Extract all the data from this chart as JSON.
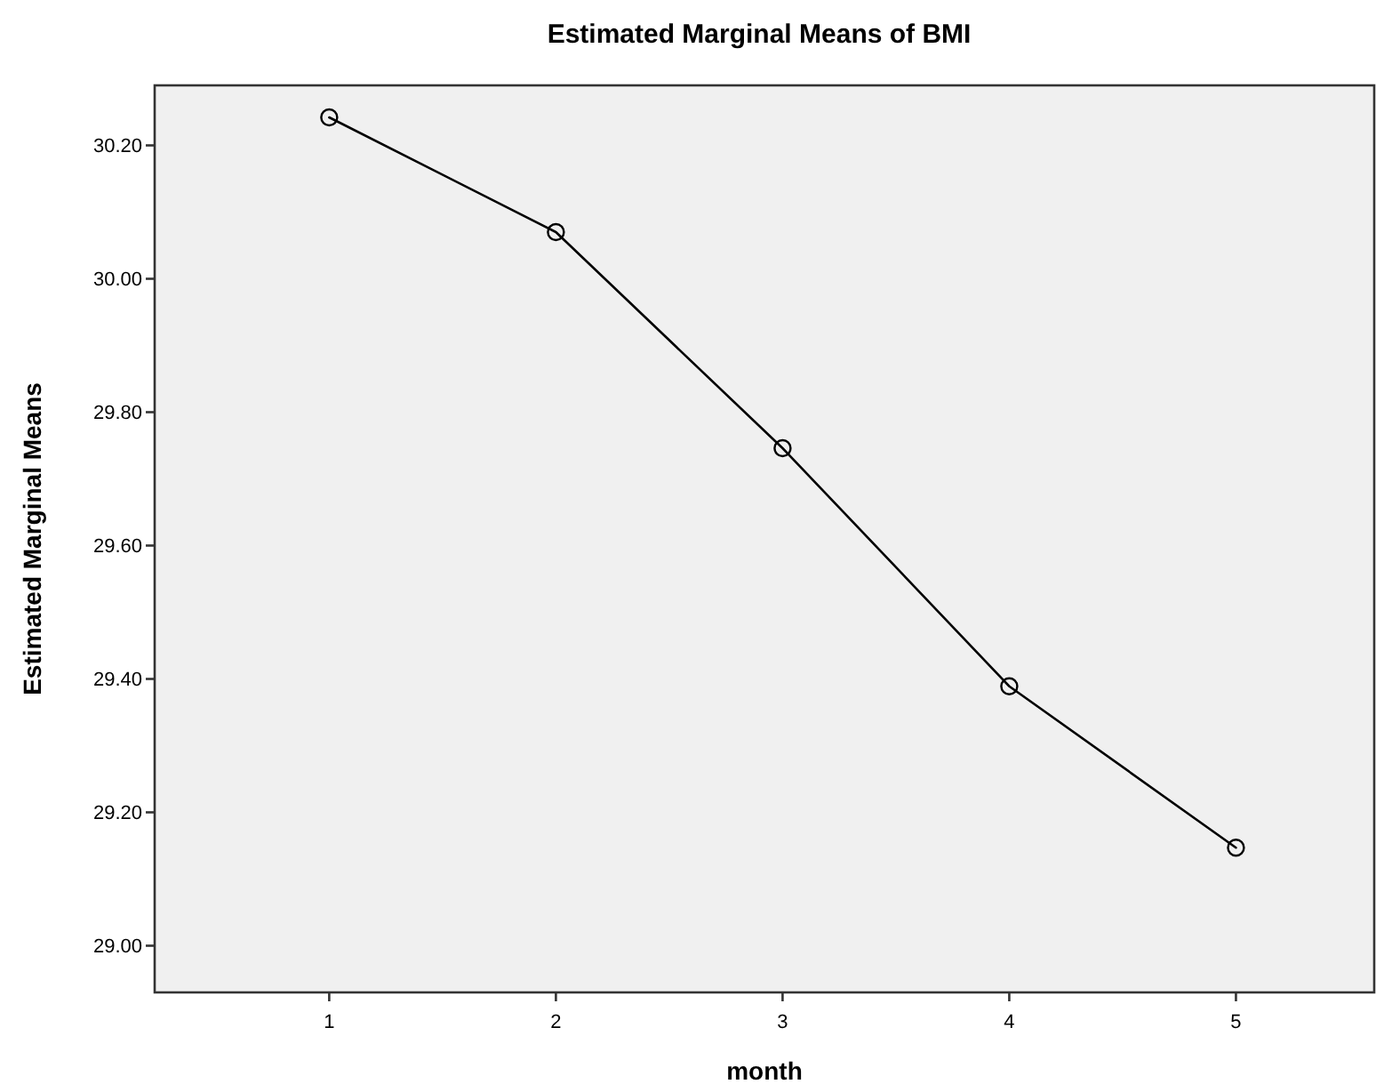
{
  "chart_data": {
    "type": "line",
    "title": "Estimated Marginal Means of BMI",
    "xlabel": "month",
    "ylabel": "Estimated Marginal Means",
    "x": [
      1,
      2,
      3,
      4,
      5
    ],
    "series": [
      {
        "color": "#000000",
        "values": [
          30.242,
          30.07,
          29.746,
          29.389,
          29.147
        ]
      }
    ],
    "xlim": [
      0.23,
      5.61
    ],
    "xticks": [
      1,
      2,
      3,
      4,
      5
    ],
    "ylim": [
      28.93,
      30.29
    ],
    "yticks": [
      {
        "value": 29,
        "label": "29.00"
      },
      {
        "value": 29.2,
        "label": "29.20"
      },
      {
        "value": 29.4,
        "label": "29.40"
      },
      {
        "value": 29.6,
        "label": "29.60"
      },
      {
        "value": 29.8,
        "label": "29.80"
      },
      {
        "value": 30,
        "label": "30.00"
      },
      {
        "value": 30.2,
        "label": "30.20"
      }
    ],
    "marker": "circle",
    "line_style": "solid"
  }
}
